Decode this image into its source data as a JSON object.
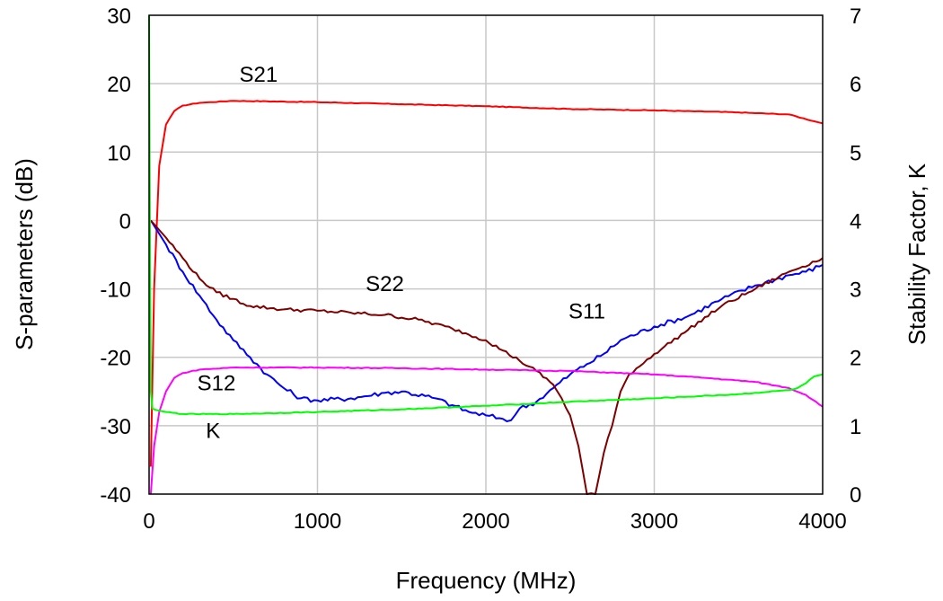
{
  "chart_data": {
    "type": "line",
    "title": "",
    "xlabel": "Frequency (MHz)",
    "ylabel": "S-parameters (dB)",
    "y2label": "Stability Factor, K",
    "xlim": [
      0,
      4000
    ],
    "ylim": [
      -40,
      30
    ],
    "y2lim": [
      0,
      7
    ],
    "xticks": [
      "0",
      "1000",
      "2000",
      "3000",
      "4000"
    ],
    "yticks": [
      "30",
      "20",
      "10",
      "0",
      "-10",
      "-20",
      "-30",
      "-40"
    ],
    "y2ticks": [
      "7",
      "6",
      "5",
      "4",
      "3",
      "2",
      "1",
      "0"
    ],
    "grid": true,
    "legend": "none",
    "series": [
      {
        "name": "S21",
        "axis": "left",
        "color": "#ff0000",
        "x": [
          10,
          30,
          60,
          100,
          150,
          200,
          300,
          500,
          1000,
          1500,
          2000,
          2500,
          3000,
          3500,
          3800,
          3950,
          4000
        ],
        "y": [
          -36,
          -10,
          8,
          14,
          16,
          16.8,
          17.2,
          17.5,
          17.3,
          17,
          16.7,
          16.3,
          16.1,
          15.8,
          15.5,
          14.5,
          14.2
        ]
      },
      {
        "name": "S11",
        "axis": "left",
        "color": "#0000ff",
        "x": [
          10,
          100,
          200,
          300,
          400,
          500,
          600,
          700,
          800,
          900,
          1000,
          1200,
          1400,
          1500,
          1700,
          1800,
          1900,
          2000,
          2100,
          2150,
          2200,
          2300,
          2400,
          2500,
          2600,
          2700,
          2800,
          3000,
          3200,
          3400,
          3600,
          3800,
          3900,
          4000
        ],
        "y": [
          0,
          -3.5,
          -7.5,
          -11,
          -14.5,
          -17.5,
          -20,
          -22.5,
          -24.5,
          -26,
          -26.3,
          -26,
          -25.2,
          -25,
          -26,
          -27,
          -28,
          -28.5,
          -29,
          -29.2,
          -27.5,
          -26.5,
          -24.5,
          -22.5,
          -21,
          -19.5,
          -17.5,
          -15.5,
          -14,
          -11.5,
          -9.5,
          -8,
          -7.5,
          -6.5
        ]
      },
      {
        "name": "S22",
        "axis": "left",
        "color": "#800000",
        "x": [
          10,
          100,
          200,
          300,
          400,
          600,
          800,
          1000,
          1200,
          1400,
          1600,
          1800,
          2000,
          2100,
          2200,
          2300,
          2400,
          2450,
          2500,
          2550,
          2600,
          2650,
          2700,
          2750,
          2800,
          2850,
          3000,
          3200,
          3400,
          3600,
          3800,
          4000
        ],
        "y": [
          0,
          -2.5,
          -5.5,
          -8.5,
          -10.5,
          -12.5,
          -13,
          -13.2,
          -13.5,
          -13.8,
          -14.5,
          -15.8,
          -17.5,
          -19,
          -20.5,
          -22,
          -24,
          -26,
          -28.5,
          -33,
          -40,
          -40,
          -34,
          -30,
          -25,
          -22.5,
          -19.5,
          -16,
          -12.5,
          -10,
          -7.5,
          -5.5
        ]
      },
      {
        "name": "S12",
        "axis": "left",
        "color": "#ff00ff",
        "x": [
          10,
          30,
          60,
          100,
          150,
          200,
          300,
          500,
          1000,
          1500,
          2000,
          2500,
          3000,
          3300,
          3600,
          3800,
          3900,
          4000
        ],
        "y": [
          -40,
          -33,
          -28,
          -25,
          -23,
          -22.3,
          -21.8,
          -21.5,
          -21.5,
          -21.6,
          -21.8,
          -22,
          -22.5,
          -23,
          -23.6,
          -24.5,
          -25.5,
          -27.2
        ]
      },
      {
        "name": "K",
        "axis": "right",
        "color": "#00ff00",
        "x": [
          0,
          5,
          10,
          20,
          40,
          100,
          200,
          500,
          1000,
          1500,
          2000,
          2500,
          3000,
          3500,
          3800,
          3850,
          3900,
          3950,
          4000
        ],
        "y": [
          7,
          4,
          1.5,
          1.25,
          1.23,
          1.2,
          1.17,
          1.17,
          1.2,
          1.24,
          1.29,
          1.35,
          1.4,
          1.46,
          1.52,
          1.55,
          1.62,
          1.72,
          1.75
        ]
      }
    ],
    "annotations": [
      {
        "text": "S21",
        "x": 650,
        "y": 20.3
      },
      {
        "text": "S22",
        "x": 1400,
        "y": -10.3
      },
      {
        "text": "S11",
        "x": 2600,
        "y": -14.3
      },
      {
        "text": "S12",
        "x": 400,
        "y": -24.8
      },
      {
        "text": "K",
        "x": 380,
        "y": -31.8
      }
    ]
  }
}
